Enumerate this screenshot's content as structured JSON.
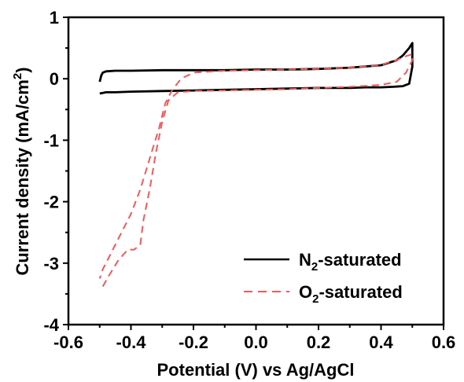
{
  "chart_data": {
    "type": "line",
    "xlabel": "Potential (V) vs Ag/AgCl",
    "ylabel_main": "Current density (mA/cm",
    "ylabel_sup": "2",
    "ylabel_tail": ")",
    "xlim": [
      -0.6,
      0.6
    ],
    "ylim": [
      -4,
      1
    ],
    "xticks": [
      -0.6,
      -0.4,
      -0.2,
      0.0,
      0.2,
      0.4,
      0.6
    ],
    "xtick_labels": [
      "-0.6",
      "-0.4",
      "-0.2",
      "0.0",
      "0.2",
      "0.4",
      "0.6"
    ],
    "yticks": [
      -4,
      -3,
      -2,
      -1,
      0,
      1
    ],
    "ytick_labels": [
      "-4",
      "-3",
      "-2",
      "-1",
      "0",
      "1"
    ],
    "grid": false,
    "legend_position": "bottom-right",
    "series": [
      {
        "legend_main": "N",
        "legend_sub": "2",
        "legend_tail": "-saturated",
        "color": "#000000",
        "dash": "solid",
        "x": [
          -0.5,
          -0.49,
          -0.48,
          -0.45,
          -0.4,
          -0.3,
          -0.2,
          -0.1,
          0.0,
          0.1,
          0.2,
          0.3,
          0.35,
          0.4,
          0.44,
          0.47,
          0.49,
          0.5,
          0.5,
          0.49,
          0.47,
          0.45,
          0.4,
          0.3,
          0.2,
          0.1,
          0.0,
          -0.1,
          -0.2,
          -0.3,
          -0.4,
          -0.45,
          -0.48,
          -0.49,
          -0.495,
          -0.5
        ],
        "y": [
          -0.24,
          -0.23,
          -0.22,
          -0.22,
          -0.21,
          -0.2,
          -0.19,
          -0.18,
          -0.17,
          -0.16,
          -0.15,
          -0.15,
          -0.14,
          -0.14,
          -0.13,
          -0.12,
          -0.08,
          0.2,
          0.58,
          0.5,
          0.38,
          0.3,
          0.22,
          0.18,
          0.16,
          0.15,
          0.15,
          0.14,
          0.14,
          0.14,
          0.13,
          0.13,
          0.12,
          0.1,
          0.05,
          -0.05
        ]
      },
      {
        "legend_main": "O",
        "legend_sub": "2",
        "legend_tail": "-saturated",
        "color": "#ef5a5a",
        "dash": "dashed",
        "x": [
          -0.49,
          -0.47,
          -0.44,
          -0.41,
          -0.39,
          -0.37,
          -0.36,
          -0.34,
          -0.32,
          -0.3,
          -0.28,
          -0.25,
          -0.2,
          -0.1,
          0.0,
          0.1,
          0.2,
          0.3,
          0.4,
          0.45,
          0.48,
          0.5,
          0.5,
          0.47,
          0.45,
          0.42,
          0.4,
          0.3,
          0.2,
          0.1,
          0.0,
          -0.1,
          -0.2,
          -0.24,
          -0.27,
          -0.29,
          -0.31,
          -0.34,
          -0.37,
          -0.4,
          -0.44,
          -0.47,
          -0.49,
          -0.5
        ],
        "y": [
          -3.38,
          -3.2,
          -2.95,
          -2.78,
          -2.78,
          -2.7,
          -2.3,
          -1.8,
          -1.2,
          -0.7,
          -0.35,
          -0.22,
          -0.2,
          -0.19,
          -0.18,
          -0.17,
          -0.15,
          -0.13,
          -0.1,
          -0.05,
          0.1,
          0.3,
          0.4,
          0.35,
          0.3,
          0.26,
          0.22,
          0.18,
          0.16,
          0.15,
          0.14,
          0.13,
          0.1,
          0.0,
          -0.2,
          -0.4,
          -0.8,
          -1.3,
          -1.8,
          -2.2,
          -2.6,
          -2.9,
          -3.1,
          -3.25
        ]
      }
    ]
  }
}
